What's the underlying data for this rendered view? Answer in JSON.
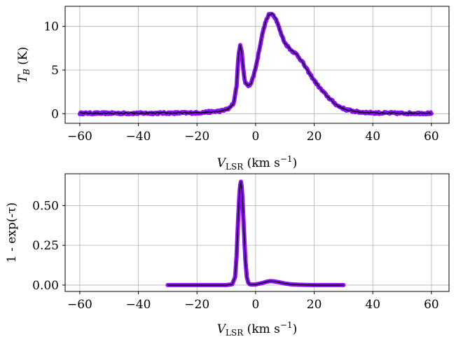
{
  "colors": {
    "model_band": "#8a00ff",
    "observed_line": "#000000",
    "grid": "#b0b0b0"
  },
  "chart_data": [
    {
      "type": "line",
      "grid": true,
      "xlabel": {
        "main": "V",
        "sub": "LSR",
        "unit_open": " (km s",
        "sup": "−1",
        "unit_close": ")"
      },
      "ylabel": {
        "main": "T",
        "sub": "B",
        "unit": " (K)"
      },
      "xlim": [
        -65,
        66
      ],
      "ylim": [
        -1.1,
        12.3
      ],
      "xticks": [
        -60,
        -40,
        -20,
        0,
        20,
        40,
        60
      ],
      "xtick_labels": [
        "−60",
        "−40",
        "−20",
        "0",
        "20",
        "40",
        "60"
      ],
      "yticks": [
        0,
        5,
        10
      ],
      "ytick_labels": [
        "0",
        "5",
        "10"
      ],
      "series": [
        {
          "style": "band",
          "x": [
            -60,
            -40,
            -20,
            -12,
            -9,
            -7.5,
            -6.5,
            -5.8,
            -5.2,
            -4.8,
            -4.2,
            -3.5,
            -2.5,
            -1.5,
            -0.5,
            0.5,
            1.5,
            2.5,
            3.5,
            4.5,
            5.5,
            6.5,
            7.5,
            8.5,
            10,
            12,
            14,
            16,
            18,
            20,
            22,
            25,
            28,
            31,
            35,
            40,
            50,
            60
          ],
          "y": [
            0.05,
            0.05,
            0.1,
            0.3,
            0.6,
            1.2,
            3.2,
            6.8,
            7.9,
            7.2,
            5.0,
            3.5,
            3.2,
            3.5,
            4.6,
            6.0,
            7.8,
            9.4,
            10.6,
            11.3,
            11.5,
            11.1,
            10.4,
            9.3,
            8.1,
            7.3,
            6.8,
            5.9,
            4.8,
            3.8,
            2.9,
            1.8,
            0.9,
            0.45,
            0.2,
            0.1,
            0.05,
            0.05
          ],
          "noise": 0.12
        },
        {
          "style": "line",
          "x": [
            -60,
            -40,
            -20,
            -12,
            -9,
            -7.5,
            -6.5,
            -5.8,
            -5.2,
            -4.8,
            -4.2,
            -3.5,
            -2.5,
            -1.5,
            -0.5,
            0.5,
            1.5,
            2.5,
            3.5,
            4.5,
            5.5,
            6.5,
            7.5,
            8.5,
            10,
            12,
            14,
            16,
            18,
            20,
            22,
            25,
            28,
            31,
            35,
            40,
            50,
            60
          ],
          "y": [
            0.05,
            0.05,
            0.1,
            0.3,
            0.6,
            1.2,
            3.2,
            6.8,
            7.9,
            7.2,
            5.0,
            3.5,
            3.2,
            3.5,
            4.6,
            6.0,
            7.8,
            9.4,
            10.6,
            11.3,
            11.5,
            11.1,
            10.4,
            9.3,
            8.1,
            7.3,
            6.8,
            5.9,
            4.8,
            3.8,
            2.9,
            1.8,
            0.9,
            0.45,
            0.2,
            0.1,
            0.05,
            0.05
          ],
          "noise": 0.1
        }
      ]
    },
    {
      "type": "line",
      "grid": true,
      "xlabel": {
        "main": "V",
        "sub": "LSR",
        "unit_open": " (km s",
        "sup": "−1",
        "unit_close": ")"
      },
      "ylabel": {
        "text": "1 - exp(-τ)"
      },
      "xlim": [
        -65,
        66
      ],
      "ylim": [
        -0.04,
        0.7
      ],
      "xticks": [
        -60,
        -40,
        -20,
        0,
        20,
        40,
        60
      ],
      "xtick_labels": [
        "−60",
        "−40",
        "−20",
        "0",
        "20",
        "40",
        "60"
      ],
      "yticks": [
        0,
        0.25,
        0.5
      ],
      "ytick_labels": [
        "0.00",
        "0.25",
        "0.50"
      ],
      "series": [
        {
          "style": "band",
          "x": [
            -30,
            -15,
            -10,
            -8,
            -7,
            -6.5,
            -6,
            -5.5,
            -5.2,
            -5,
            -4.8,
            -4.5,
            -4,
            -3.5,
            -3,
            -2.5,
            -2,
            -1,
            0,
            2,
            4,
            5,
            6,
            8,
            10,
            12,
            15,
            20,
            30
          ],
          "y": [
            0,
            0,
            0,
            0.005,
            0.05,
            0.18,
            0.4,
            0.58,
            0.64,
            0.65,
            0.63,
            0.55,
            0.35,
            0.16,
            0.05,
            0.015,
            0.005,
            0.003,
            0.004,
            0.012,
            0.022,
            0.025,
            0.024,
            0.018,
            0.01,
            0.005,
            0.002,
            0,
            0
          ],
          "noise": 0
        },
        {
          "style": "line",
          "x": [
            -30,
            -15,
            -10,
            -8,
            -7,
            -6.5,
            -6,
            -5.5,
            -5.2,
            -5,
            -4.8,
            -4.5,
            -4,
            -3.5,
            -3,
            -2.5,
            -2,
            -1,
            0,
            2,
            4,
            5,
            6,
            8,
            10,
            12,
            15,
            20,
            30
          ],
          "y": [
            0,
            0,
            0,
            0.005,
            0.05,
            0.18,
            0.4,
            0.58,
            0.64,
            0.65,
            0.63,
            0.55,
            0.35,
            0.16,
            0.05,
            0.015,
            0.005,
            0.003,
            0.004,
            0.012,
            0.022,
            0.025,
            0.024,
            0.018,
            0.01,
            0.005,
            0.002,
            0,
            0
          ],
          "noise": 0
        }
      ]
    }
  ]
}
